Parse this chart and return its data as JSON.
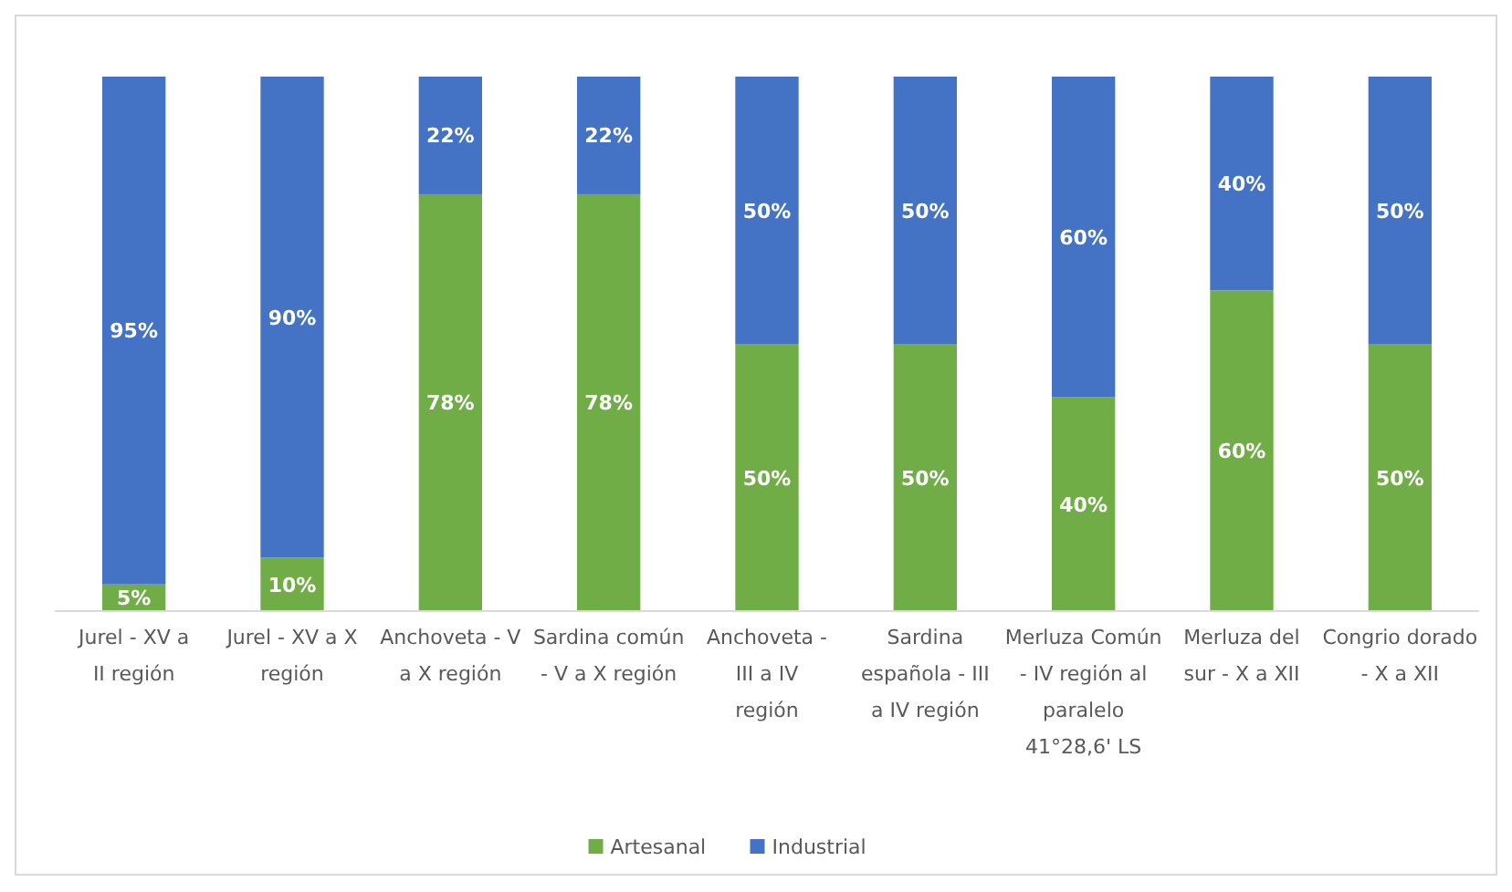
{
  "chart_data": {
    "type": "bar",
    "stacked": true,
    "legend": "bottom",
    "categories": [
      "Jurel - XV a II región",
      "Jurel - XV a X región",
      "Anchoveta - V a X región",
      "Sardina común - V a X región",
      "Anchoveta - III a IV región",
      "Sardina española - III a IV región",
      "Merluza Común - IV región al paralelo 41°28,6' LS",
      "Merluza del sur - X a XII",
      "Congrio dorado - X a XII"
    ],
    "series": [
      {
        "name": "Artesanal",
        "color": "#70ad47",
        "values": [
          5,
          10,
          78,
          78,
          50,
          50,
          40,
          60,
          50
        ],
        "value_labels": [
          "5%",
          "10%",
          "78%",
          "78%",
          "50%",
          "50%",
          "40%",
          "60%",
          "50%"
        ]
      },
      {
        "name": "Industrial",
        "color": "#4472c4",
        "values": [
          95,
          90,
          22,
          22,
          50,
          50,
          60,
          40,
          50
        ],
        "value_labels": [
          "95%",
          "90%",
          "22%",
          "22%",
          "50%",
          "50%",
          "60%",
          "40%",
          "50%"
        ]
      }
    ]
  }
}
